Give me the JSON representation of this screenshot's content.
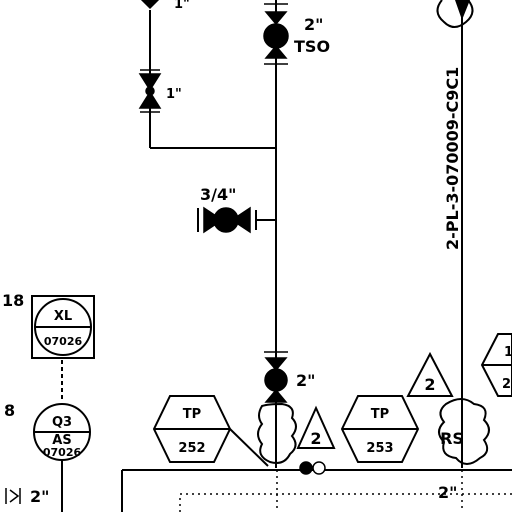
{
  "labels": {
    "valve_top_left_size": "1\"",
    "valve_mid_left_size": "1\"",
    "valve_tso_size": "2\"",
    "valve_tso_tag": "TSO",
    "valve_three_quarter": "3/4\"",
    "valve_main_size": "2\"",
    "line_number": "2-PL-3-070009-C9C1",
    "left_num_top": "18",
    "left_num_mid": "8",
    "left_valve_size": "2\"",
    "bottom_right_size": "2\""
  },
  "instruments": [
    {
      "id": "xl",
      "top": "XL",
      "bottom": "07026"
    },
    {
      "id": "qs",
      "top": "Q3",
      "mid": "AS",
      "bottom": "07026"
    },
    {
      "id": "tp252",
      "top": "TP",
      "bottom": "252"
    },
    {
      "id": "tp253",
      "top": "TP",
      "bottom": "253"
    },
    {
      "id": "rs",
      "text": "RS"
    },
    {
      "id": "tri1",
      "text": "2"
    },
    {
      "id": "tri2",
      "text": "2"
    },
    {
      "id": "tp_right",
      "top": "1",
      "bottom": "2"
    }
  ]
}
